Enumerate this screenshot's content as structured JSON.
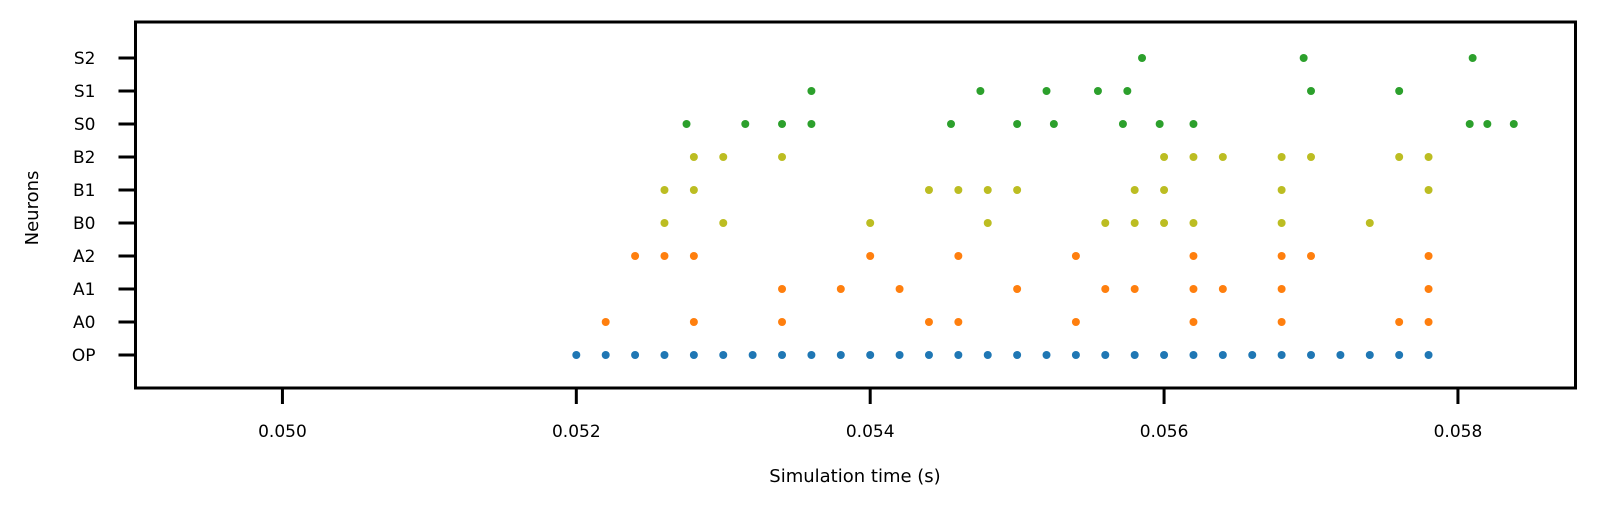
{
  "chart_data": {
    "type": "scatter",
    "title": "",
    "xlabel": "Simulation time (s)",
    "ylabel": "Neurons",
    "xlim": [
      0.049,
      0.0588
    ],
    "x_ticks": [
      "0.050",
      "0.052",
      "0.054",
      "0.056",
      "0.058"
    ],
    "x_tick_values": [
      0.05,
      0.052,
      0.054,
      0.056,
      0.058
    ],
    "categories": [
      "OP",
      "A0",
      "A1",
      "A2",
      "B0",
      "B1",
      "B2",
      "S0",
      "S1",
      "S2"
    ],
    "grid": false,
    "series": [
      {
        "color": "#1f77b4",
        "points": [
          {
            "row": "OP",
            "x": [
              0.052,
              0.0522,
              0.0524,
              0.0526,
              0.0528,
              0.053,
              0.0532,
              0.0534,
              0.0536,
              0.0538,
              0.054,
              0.0542,
              0.0544,
              0.0546,
              0.0548,
              0.055,
              0.0552,
              0.0554,
              0.0556,
              0.0558,
              0.056,
              0.0562,
              0.0564,
              0.0566,
              0.0568,
              0.057,
              0.0572,
              0.0574,
              0.0576,
              0.0578
            ]
          }
        ]
      },
      {
        "color": "#ff7f0e",
        "points": [
          {
            "row": "A0",
            "x": [
              0.0522,
              0.0528,
              0.0534,
              0.0544,
              0.0546,
              0.0554,
              0.0562,
              0.0568,
              0.0576,
              0.0578
            ]
          },
          {
            "row": "A1",
            "x": [
              0.0534,
              0.0538,
              0.0542,
              0.055,
              0.0556,
              0.0558,
              0.0562,
              0.0564,
              0.0568,
              0.0578
            ]
          },
          {
            "row": "A2",
            "x": [
              0.0524,
              0.0526,
              0.0528,
              0.054,
              0.0546,
              0.0554,
              0.0562,
              0.0568,
              0.057,
              0.0578
            ]
          }
        ]
      },
      {
        "color": "#bcbd22",
        "points": [
          {
            "row": "B0",
            "x": [
              0.0526,
              0.053,
              0.054,
              0.0548,
              0.0556,
              0.0558,
              0.056,
              0.0562,
              0.0568,
              0.0574
            ]
          },
          {
            "row": "B1",
            "x": [
              0.0526,
              0.0528,
              0.0544,
              0.0546,
              0.0548,
              0.055,
              0.0558,
              0.056,
              0.0568,
              0.0578
            ]
          },
          {
            "row": "B2",
            "x": [
              0.0528,
              0.053,
              0.0534,
              0.056,
              0.0562,
              0.0564,
              0.0568,
              0.057,
              0.0576,
              0.0578
            ]
          }
        ]
      },
      {
        "color": "#2ca02c",
        "points": [
          {
            "row": "S0",
            "x": [
              0.05275,
              0.05315,
              0.0534,
              0.0536,
              0.05455,
              0.055,
              0.05525,
              0.05572,
              0.05597,
              0.0562,
              0.05808,
              0.0582,
              0.05838
            ]
          },
          {
            "row": "S1",
            "x": [
              0.0536,
              0.05475,
              0.0552,
              0.05555,
              0.05575,
              0.057,
              0.0576
            ]
          },
          {
            "row": "S2",
            "x": [
              0.05585,
              0.05695,
              0.0581
            ]
          }
        ]
      }
    ]
  }
}
